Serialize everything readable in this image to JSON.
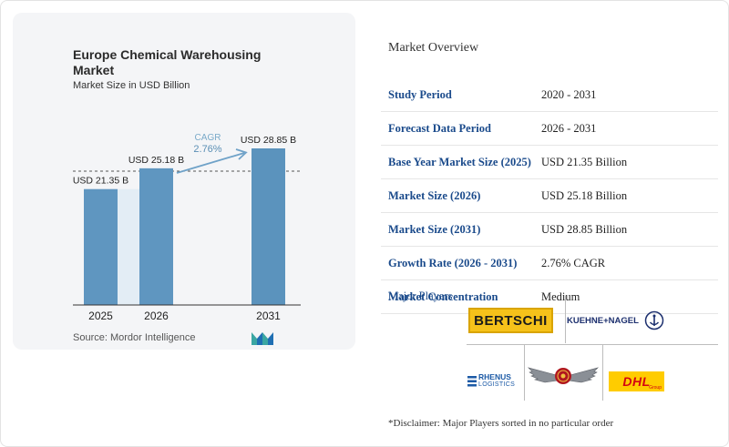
{
  "chart": {
    "title": "Europe Chemical Warehousing Market",
    "subtitle": "Market Size in USD Billion",
    "source": "Source: Mordor Intelligence",
    "cagr_label": "CAGR",
    "cagr_value": "2.76%"
  },
  "chart_data": {
    "type": "bar",
    "title": "Europe Chemical Warehousing Market",
    "subtitle": "Market Size in USD Billion",
    "categories": [
      "2025",
      "2026",
      "2031"
    ],
    "values": [
      21.35,
      25.18,
      28.85
    ],
    "value_labels": [
      "USD 21.35 B",
      "USD 25.18 B",
      "USD 28.85 B"
    ],
    "ylim": [
      0,
      28.85
    ],
    "annotation": {
      "label": "CAGR",
      "value": "2.76%"
    },
    "colors": {
      "bar": "#5b93bd",
      "bar_light": "#7fb0d3",
      "accent": "#7aaac9",
      "baseline": "#333333"
    }
  },
  "overview": {
    "title": "Market Overview",
    "rows": [
      {
        "key": "Study Period",
        "value": "2020 - 2031"
      },
      {
        "key": "Forecast Data Period",
        "value": "2026 - 2031"
      },
      {
        "key": "Base Year Market Size (2025)",
        "value": "USD 21.35 Billion"
      },
      {
        "key": "Market Size (2026)",
        "value": "USD 25.18 Billion"
      },
      {
        "key": "Market Size (2031)",
        "value": "USD 28.85 Billion"
      },
      {
        "key": "Growth Rate (2026 - 2031)",
        "value": "2.76% CAGR"
      },
      {
        "key": "Market Concentration",
        "value": "Medium"
      }
    ]
  },
  "players": {
    "title": "Major Players",
    "logos": [
      {
        "text": "BERTSCHI",
        "icon": "bertschi-logo"
      },
      {
        "text": "KUEHNE+NAGEL",
        "icon": "kuehne-nagel-logo"
      },
      {
        "text": "RHENUS",
        "sub": "LOGISTICS",
        "icon": "rhenus-logo"
      },
      {
        "text": "",
        "icon": "winged-emblem-logo"
      },
      {
        "text": "DHL",
        "sub": "Group",
        "icon": "dhl-logo"
      }
    ],
    "disclaimer": "*Disclaimer: Major Players sorted in no particular order"
  }
}
